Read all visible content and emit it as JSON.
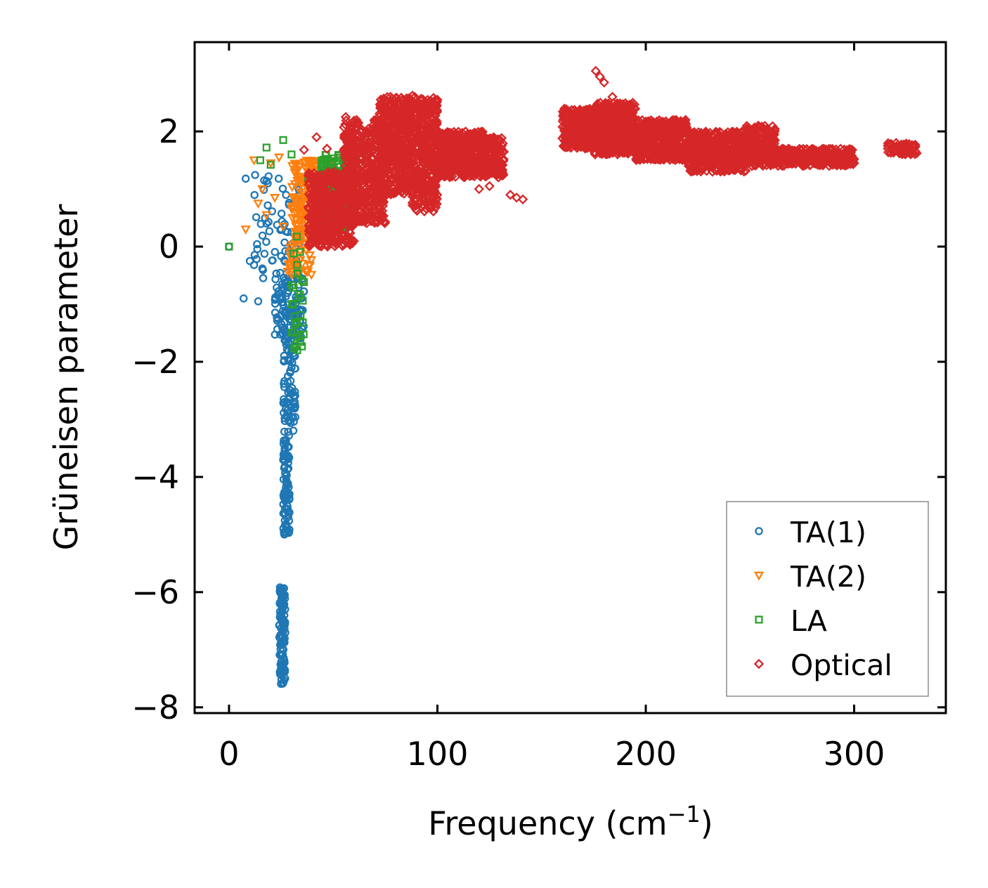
{
  "chart_data": {
    "type": "scatter",
    "title": "",
    "xlabel": "Frequency (cm",
    "xlabel_sup": "−1",
    "xlabel_end": ")",
    "ylabel": "Grüneisen parameter",
    "xlim": [
      -16.5,
      344
    ],
    "ylim": [
      -8.1,
      3.55
    ],
    "xticks": [
      0,
      100,
      200,
      300
    ],
    "xtick_labels": [
      "0",
      "100",
      "200",
      "300"
    ],
    "yticks": [
      -8,
      -6,
      -4,
      -2,
      0,
      2
    ],
    "ytick_labels": [
      "−8",
      "−6",
      "−4",
      "−2",
      "0",
      "2"
    ],
    "legend_position": "lower-right",
    "series": [
      {
        "name": "TA(1)",
        "marker": "circle",
        "color": "#1f77b4",
        "clusters": [
          {
            "x": [
              24,
              27
            ],
            "y": [
              -7.6,
              -5.9
            ],
            "n": 110
          },
          {
            "x": [
              26,
              29
            ],
            "y": [
              -5.0,
              -3.2
            ],
            "n": 90
          },
          {
            "x": [
              26,
              32
            ],
            "y": [
              -3.2,
              -1.6
            ],
            "n": 70
          },
          {
            "x": [
              22,
              36
            ],
            "y": [
              -1.6,
              -0.5
            ],
            "n": 120
          },
          {
            "x": [
              12,
              34
            ],
            "y": [
              -0.6,
              1.3
            ],
            "n": 60
          }
        ],
        "points": [
          {
            "x": 0,
            "y": 0.0
          },
          {
            "x": 7,
            "y": -0.9
          },
          {
            "x": 8,
            "y": 1.18
          },
          {
            "x": 10,
            "y": -0.25
          },
          {
            "x": 12,
            "y": -0.32
          },
          {
            "x": 14,
            "y": -0.95
          },
          {
            "x": 16,
            "y": -0.38
          },
          {
            "x": 18,
            "y": 0.4
          },
          {
            "x": 19,
            "y": 1.22
          }
        ]
      },
      {
        "name": "TA(2)",
        "marker": "triangle-down",
        "color": "#ff7f0e",
        "clusters": [
          {
            "x": [
              30,
              50
            ],
            "y": [
              0.1,
              1.5
            ],
            "n": 230
          },
          {
            "x": [
              28,
              40
            ],
            "y": [
              -0.5,
              0.3
            ],
            "n": 50
          }
        ],
        "points": [
          {
            "x": 8,
            "y": 0.3
          },
          {
            "x": 12,
            "y": 1.5
          },
          {
            "x": 14,
            "y": 0.75
          },
          {
            "x": 16,
            "y": 1.0
          },
          {
            "x": 18,
            "y": 0.55
          },
          {
            "x": 20,
            "y": 1.45
          },
          {
            "x": 22,
            "y": 0.85
          },
          {
            "x": 24,
            "y": 1.55
          },
          {
            "x": 26,
            "y": 0.35
          }
        ]
      },
      {
        "name": "LA",
        "marker": "square",
        "color": "#2ca02c",
        "clusters": [
          {
            "x": [
              44,
              56
            ],
            "y": [
              0.3,
              1.6
            ],
            "n": 230
          },
          {
            "x": [
              30,
              36
            ],
            "y": [
              -1.8,
              0.2
            ],
            "n": 30
          }
        ],
        "points": [
          {
            "x": 0,
            "y": 0.0
          },
          {
            "x": 15,
            "y": 1.5
          },
          {
            "x": 18,
            "y": 1.72
          },
          {
            "x": 20,
            "y": 1.42
          },
          {
            "x": 26,
            "y": 1.85
          },
          {
            "x": 30,
            "y": 1.6
          },
          {
            "x": 38,
            "y": 1.2
          },
          {
            "x": 52,
            "y": 0.15
          }
        ]
      },
      {
        "name": "Optical",
        "marker": "diamond",
        "color": "#d62728",
        "clusters": [
          {
            "x": [
              38,
              60
            ],
            "y": [
              0.0,
              1.3
            ],
            "n": 450
          },
          {
            "x": [
              55,
              75
            ],
            "y": [
              0.4,
              2.2
            ],
            "n": 500
          },
          {
            "x": [
              72,
              100
            ],
            "y": [
              0.9,
              2.6
            ],
            "n": 750
          },
          {
            "x": [
              88,
              100
            ],
            "y": [
              0.6,
              1.2
            ],
            "n": 80
          },
          {
            "x": [
              100,
              122
            ],
            "y": [
              1.2,
              2.0
            ],
            "n": 420
          },
          {
            "x": [
              120,
              132
            ],
            "y": [
              1.2,
              1.9
            ],
            "n": 150
          },
          {
            "x": [
              160,
              175
            ],
            "y": [
              1.7,
              2.4
            ],
            "n": 320
          },
          {
            "x": [
              175,
              195
            ],
            "y": [
              1.6,
              2.5
            ],
            "n": 420
          },
          {
            "x": [
              195,
              220
            ],
            "y": [
              1.5,
              2.2
            ],
            "n": 420
          },
          {
            "x": [
              220,
              248
            ],
            "y": [
              1.3,
              2.0
            ],
            "n": 420
          },
          {
            "x": [
              248,
              262
            ],
            "y": [
              1.4,
              2.1
            ],
            "n": 220
          },
          {
            "x": [
              262,
              300
            ],
            "y": [
              1.4,
              1.7
            ],
            "n": 320
          },
          {
            "x": [
              316,
              330
            ],
            "y": [
              1.6,
              1.8
            ],
            "n": 60
          }
        ],
        "points": [
          {
            "x": 36,
            "y": 1.68
          },
          {
            "x": 42,
            "y": 1.9
          },
          {
            "x": 47,
            "y": 1.7
          },
          {
            "x": 56,
            "y": 2.25
          },
          {
            "x": 62,
            "y": 2.15
          },
          {
            "x": 73,
            "y": 2.55
          },
          {
            "x": 80,
            "y": 2.58
          },
          {
            "x": 88,
            "y": 2.62
          },
          {
            "x": 96,
            "y": 2.3
          },
          {
            "x": 120,
            "y": 1.0
          },
          {
            "x": 125,
            "y": 1.05
          },
          {
            "x": 135,
            "y": 0.9
          },
          {
            "x": 138,
            "y": 0.85
          },
          {
            "x": 141,
            "y": 0.82
          },
          {
            "x": 176,
            "y": 3.05
          },
          {
            "x": 178,
            "y": 2.95
          },
          {
            "x": 180,
            "y": 2.85
          },
          {
            "x": 184,
            "y": 2.6
          },
          {
            "x": 188,
            "y": 2.3
          },
          {
            "x": 232,
            "y": 1.3
          },
          {
            "x": 245,
            "y": 1.5
          },
          {
            "x": 254,
            "y": 2.1
          },
          {
            "x": 300,
            "y": 1.45
          },
          {
            "x": 330,
            "y": 1.62
          }
        ]
      }
    ]
  }
}
